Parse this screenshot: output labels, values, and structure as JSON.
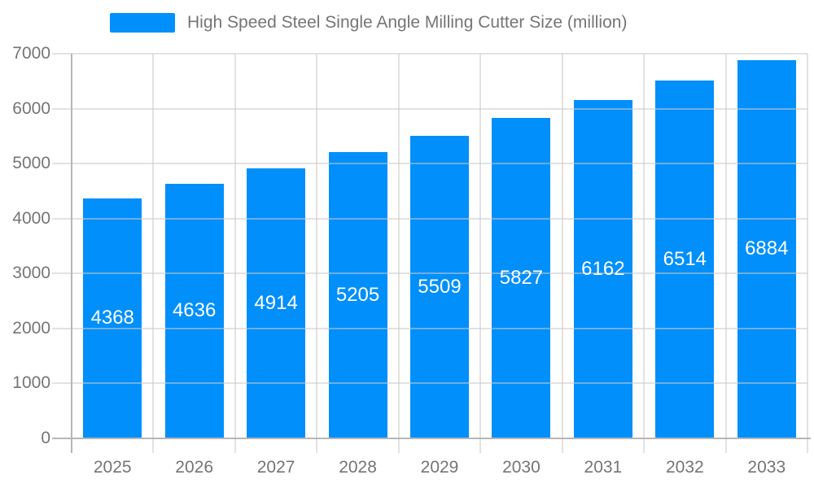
{
  "chart_data": {
    "type": "bar",
    "title": "High Speed Steel Single Angle Milling Cutter Size (million)",
    "categories": [
      "2025",
      "2026",
      "2027",
      "2028",
      "2029",
      "2030",
      "2031",
      "2032",
      "2033"
    ],
    "values": [
      4368,
      4636,
      4914,
      5205,
      5509,
      5827,
      6162,
      6514,
      6884
    ],
    "value_labels": [
      "4368",
      "4636",
      "4914",
      "5205",
      "5509",
      "5827",
      "6162",
      "6514",
      "6884"
    ],
    "xlabel": "",
    "ylabel": "",
    "ylim": [
      0,
      7000
    ],
    "y_ticks": [
      0,
      1000,
      2000,
      3000,
      4000,
      5000,
      6000,
      7000
    ],
    "y_tick_labels": [
      "0",
      "1000",
      "2000",
      "3000",
      "4000",
      "5000",
      "6000",
      "7000"
    ],
    "grid": true,
    "legend_position": "top",
    "colors": {
      "bar": "#008FFB",
      "grid": "#e0e0e0",
      "axis": "#b6b6b6",
      "label_text": "#757575",
      "value_text": "#ffffff",
      "background": "#ffffff"
    }
  }
}
